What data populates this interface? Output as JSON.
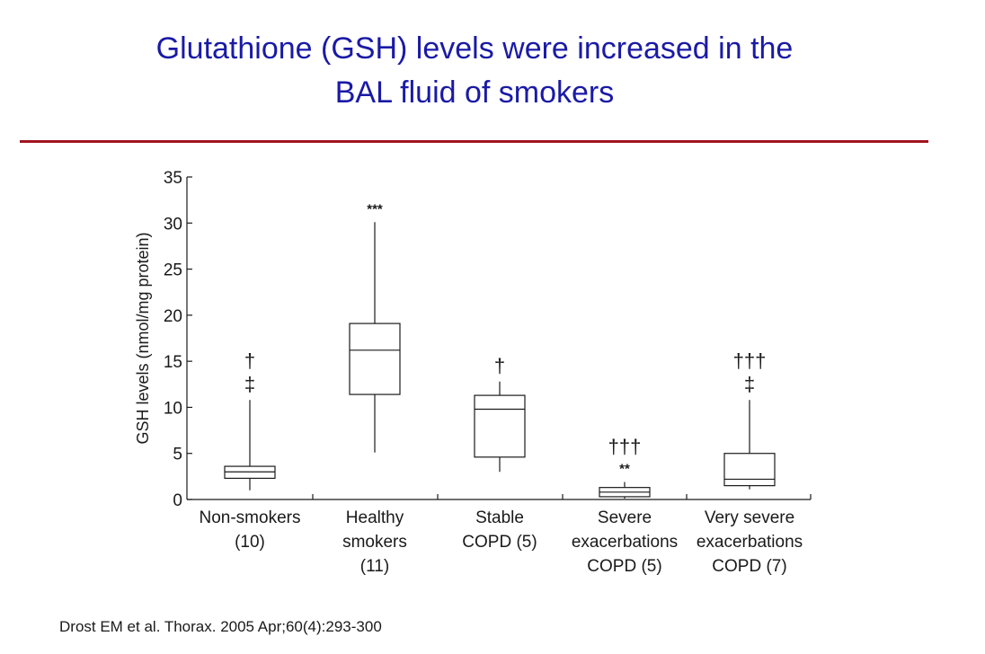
{
  "slide": {
    "title_line1": "Glutathione (GSH) levels were increased in the",
    "title_line2": "BAL fluid of smokers",
    "citation": "Drost EM et al. Thorax. 2005 Apr;60(4):293-300",
    "colors": {
      "title": "#1a1aa6",
      "divider": "#a0151f",
      "ink": "#1a1a1a"
    }
  },
  "chart_data": {
    "type": "box",
    "ylabel": "GSH levels (nmol/mg protein)",
    "xlabel": "",
    "title": "",
    "ylim": [
      0,
      35
    ],
    "yticks": [
      0,
      5,
      10,
      15,
      20,
      25,
      30,
      35
    ],
    "grid": false,
    "groups": [
      {
        "label_lines": [
          "Non-smokers",
          "(10)"
        ],
        "min": 1.0,
        "q1": 2.3,
        "median": 3.0,
        "q3": 3.6,
        "max": 10.8,
        "annotations": [
          "†",
          "‡"
        ]
      },
      {
        "label_lines": [
          "Healthy",
          "smokers",
          "(11)"
        ],
        "min": 5.1,
        "q1": 11.4,
        "median": 16.2,
        "q3": 19.1,
        "max": 30.1,
        "annotations": [
          "***"
        ]
      },
      {
        "label_lines": [
          "Stable",
          "COPD (5)"
        ],
        "min": 3.0,
        "q1": 4.6,
        "median": 9.8,
        "q3": 11.3,
        "max": 12.8,
        "annotations": [
          "†"
        ]
      },
      {
        "label_lines": [
          "Severe",
          "exacerbations",
          "COPD (5)"
        ],
        "min": 0.1,
        "q1": 0.3,
        "median": 0.8,
        "q3": 1.3,
        "max": 1.9,
        "annotations": [
          "†††",
          "**"
        ]
      },
      {
        "label_lines": [
          "Very severe",
          "exacerbations",
          "COPD (7)"
        ],
        "min": 1.1,
        "q1": 1.5,
        "median": 2.2,
        "q3": 5.0,
        "max": 10.8,
        "annotations": [
          "†††",
          "‡"
        ]
      }
    ]
  }
}
